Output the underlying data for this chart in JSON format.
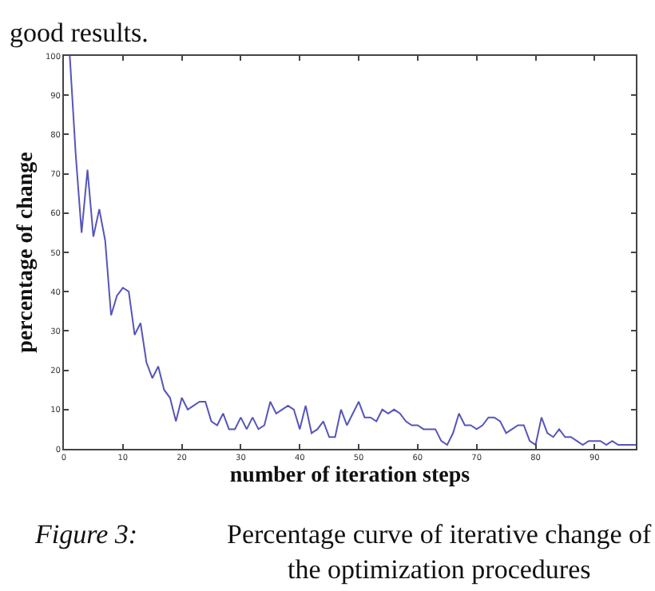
{
  "chart_data": {
    "type": "line",
    "xlabel": "number of iteration steps",
    "ylabel": "percentage of change",
    "annotations": [
      "good results.",
      "Figure 3:",
      "Percentage curve of iterative change of the optimization procedures"
    ],
    "x": [
      1,
      2,
      3,
      4,
      5,
      6,
      7,
      8,
      9,
      10,
      11,
      12,
      13,
      14,
      15,
      16,
      17,
      18,
      19,
      20,
      21,
      22,
      23,
      24,
      25,
      26,
      27,
      28,
      29,
      30,
      31,
      32,
      33,
      34,
      35,
      36,
      37,
      38,
      39,
      40,
      41,
      42,
      43,
      44,
      45,
      46,
      47,
      48,
      49,
      50,
      51,
      52,
      53,
      54,
      55,
      56,
      57,
      58,
      59,
      60,
      61,
      62,
      63,
      64,
      65,
      66,
      67,
      68,
      69,
      70,
      71,
      72,
      73,
      74,
      75,
      76,
      77,
      78,
      79,
      80,
      81,
      82,
      83,
      84,
      85,
      86,
      87,
      88,
      89,
      90,
      91,
      92,
      93,
      94,
      95,
      96,
      97
    ],
    "series": [
      {
        "color": "#5555bb",
        "values": [
          100,
          75,
          55,
          71,
          54,
          61,
          53,
          34,
          39,
          41,
          40,
          29,
          32,
          22,
          18,
          21,
          15,
          13,
          7,
          13,
          10,
          11,
          12,
          12,
          7,
          6,
          9,
          5,
          5,
          8,
          5,
          8,
          5,
          6,
          12,
          9,
          10,
          11,
          10,
          5,
          11,
          4,
          5,
          7,
          3,
          3,
          10,
          6,
          9,
          12,
          8,
          8,
          7,
          10,
          9,
          10,
          9,
          7,
          6,
          6,
          5,
          5,
          5,
          2,
          1,
          4,
          9,
          6,
          6,
          5,
          6,
          8,
          8,
          7,
          4,
          5,
          6,
          6,
          2,
          1,
          8,
          4,
          3,
          5,
          3,
          3,
          2,
          1,
          2,
          2,
          2,
          1,
          2,
          1,
          1,
          1,
          1
        ]
      }
    ],
    "xlim": [
      0,
      97
    ],
    "ylim": [
      0,
      100
    ],
    "xticks": [
      0,
      10,
      20,
      30,
      40,
      50,
      60,
      70,
      80,
      90
    ],
    "yticks": [
      0,
      10,
      20,
      30,
      40,
      50,
      60,
      70,
      80,
      90,
      100
    ],
    "marker": "none",
    "line_style": "solid"
  }
}
